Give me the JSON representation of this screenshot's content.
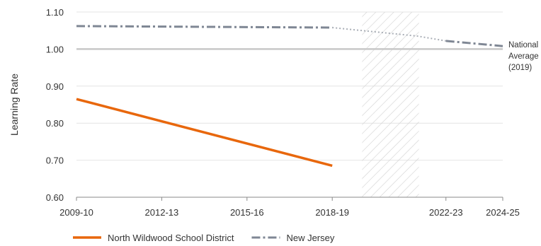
{
  "chart_data": {
    "type": "line",
    "ylabel": "Learning Rate",
    "ylim": [
      0.6,
      1.1
    ],
    "y_ticks": [
      "0.60",
      "0.70",
      "0.80",
      "0.90",
      "1.00",
      "1.10"
    ],
    "x_ticks": [
      "2009-10",
      "2012-13",
      "2015-16",
      "2018-19",
      "2022-23",
      "2024-25"
    ],
    "x_tick_years": [
      2009,
      2012,
      2015,
      2018,
      2022,
      2024
    ],
    "x_range": [
      2009,
      2024
    ],
    "grid": "horizontal",
    "legend_position": "bottom-left",
    "hatched_region": [
      2019,
      2021
    ],
    "reference_line": {
      "value": 1.0,
      "label_lines": [
        "National",
        "Average",
        "(2019)"
      ],
      "color": "#c8c8c8"
    },
    "series": [
      {
        "name": "North Wildwood School District",
        "color": "#e8670c",
        "style": "solid",
        "points": [
          [
            2009,
            0.865
          ],
          [
            2018,
            0.685
          ]
        ]
      },
      {
        "name": "New Jersey",
        "color": "#7f8794",
        "style": "dashdot",
        "points": [
          [
            2009,
            1.062
          ],
          [
            2018,
            1.058
          ]
        ],
        "projection_style": "dotted",
        "projection_points": [
          [
            2018,
            1.058
          ],
          [
            2021,
            1.035
          ],
          [
            2022,
            1.022
          ]
        ],
        "later_points": [
          [
            2022,
            1.022
          ],
          [
            2024,
            1.008
          ]
        ]
      }
    ]
  }
}
